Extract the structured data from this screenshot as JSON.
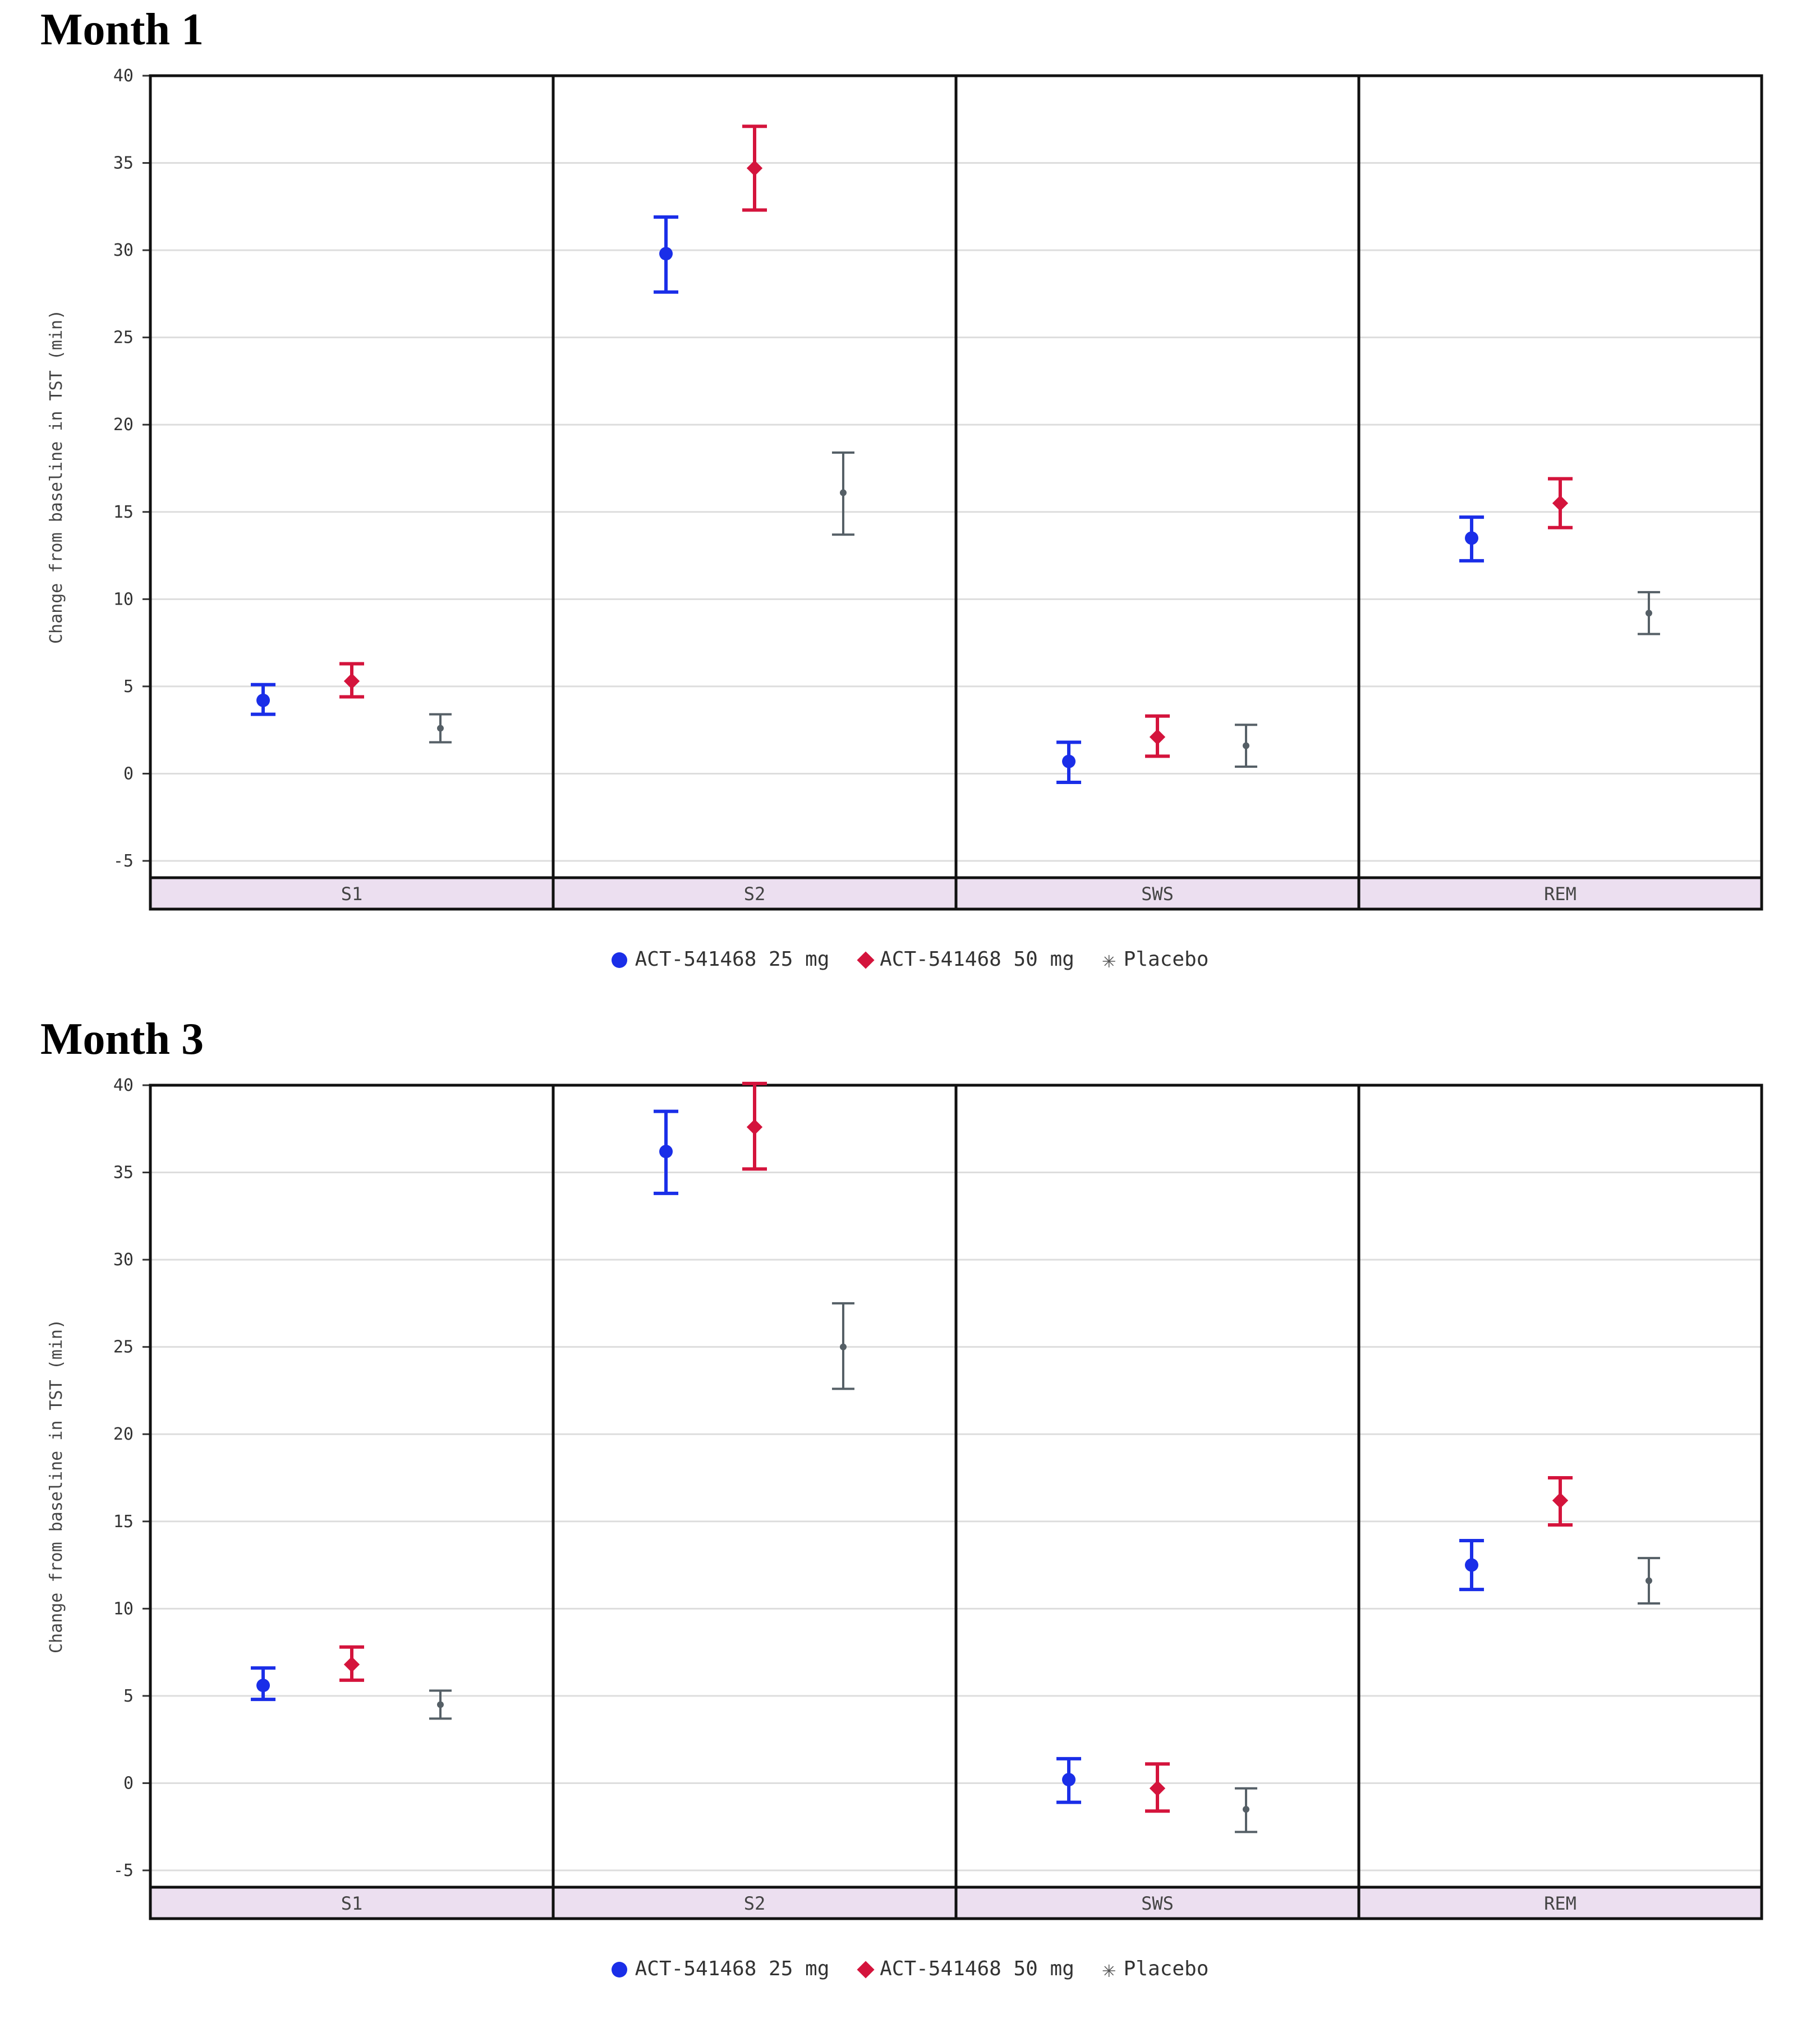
{
  "colors": {
    "drug25": "#1a2ee8",
    "drug50": "#d4143c",
    "placebo": "#555f66",
    "strip": "#ecdff0",
    "grid": "#dddddd"
  },
  "legend": {
    "items": [
      {
        "label": "ACT-541468 25 mg",
        "marker": "circle",
        "color": "#1a2ee8"
      },
      {
        "label": "ACT-541468 50 mg",
        "marker": "diamond",
        "color": "#d4143c"
      },
      {
        "label": "Placebo",
        "marker": "star",
        "color": "#555f66"
      }
    ]
  },
  "chart_data": [
    {
      "type": "scatter",
      "title": "Month 1",
      "ylabel": "Change from baseline in TST (min)",
      "ylim": [
        -5,
        40
      ],
      "yticks": [
        -5,
        0,
        5,
        10,
        15,
        20,
        25,
        30,
        35,
        40
      ],
      "grid": true,
      "legend_position": "bottom",
      "panels": [
        "S1",
        "S2",
        "SWS",
        "REM"
      ],
      "series": [
        {
          "name": "ACT-541468 25 mg",
          "color": "#1a2ee8",
          "points": [
            {
              "panel": "S1",
              "y": 4.2,
              "low": 3.4,
              "high": 5.1
            },
            {
              "panel": "S2",
              "y": 29.8,
              "low": 27.6,
              "high": 31.9
            },
            {
              "panel": "SWS",
              "y": 0.7,
              "low": -0.5,
              "high": 1.8
            },
            {
              "panel": "REM",
              "y": 13.5,
              "low": 12.2,
              "high": 14.7
            }
          ]
        },
        {
          "name": "ACT-541468 50 mg",
          "color": "#d4143c",
          "points": [
            {
              "panel": "S1",
              "y": 5.3,
              "low": 4.4,
              "high": 6.3
            },
            {
              "panel": "S2",
              "y": 34.7,
              "low": 32.3,
              "high": 37.1
            },
            {
              "panel": "SWS",
              "y": 2.1,
              "low": 1.0,
              "high": 3.3
            },
            {
              "panel": "REM",
              "y": 15.5,
              "low": 14.1,
              "high": 16.9
            }
          ]
        },
        {
          "name": "Placebo",
          "color": "#555f66",
          "points": [
            {
              "panel": "S1",
              "y": 2.6,
              "low": 1.8,
              "high": 3.4
            },
            {
              "panel": "S2",
              "y": 16.1,
              "low": 13.7,
              "high": 18.4
            },
            {
              "panel": "SWS",
              "y": 1.6,
              "low": 0.4,
              "high": 2.8
            },
            {
              "panel": "REM",
              "y": 9.2,
              "low": 8.0,
              "high": 10.4
            }
          ]
        }
      ]
    },
    {
      "type": "scatter",
      "title": "Month 3",
      "ylabel": "Change from baseline in TST (min)",
      "ylim": [
        -5,
        40
      ],
      "yticks": [
        -5,
        0,
        5,
        10,
        15,
        20,
        25,
        30,
        35,
        40
      ],
      "grid": true,
      "legend_position": "bottom",
      "panels": [
        "S1",
        "S2",
        "SWS",
        "REM"
      ],
      "series": [
        {
          "name": "ACT-541468 25 mg",
          "color": "#1a2ee8",
          "points": [
            {
              "panel": "S1",
              "y": 5.6,
              "low": 4.8,
              "high": 6.6
            },
            {
              "panel": "S2",
              "y": 36.2,
              "low": 33.8,
              "high": 38.5
            },
            {
              "panel": "SWS",
              "y": 0.2,
              "low": -1.1,
              "high": 1.4
            },
            {
              "panel": "REM",
              "y": 12.5,
              "low": 11.1,
              "high": 13.9
            }
          ]
        },
        {
          "name": "ACT-541468 50 mg",
          "color": "#d4143c",
          "points": [
            {
              "panel": "S1",
              "y": 6.8,
              "low": 5.9,
              "high": 7.8
            },
            {
              "panel": "S2",
              "y": 37.6,
              "low": 35.2,
              "high": 40.1
            },
            {
              "panel": "SWS",
              "y": -0.3,
              "low": -1.6,
              "high": 1.1
            },
            {
              "panel": "REM",
              "y": 16.2,
              "low": 14.8,
              "high": 17.5
            }
          ]
        },
        {
          "name": "Placebo",
          "color": "#555f66",
          "points": [
            {
              "panel": "S1",
              "y": 4.5,
              "low": 3.7,
              "high": 5.3
            },
            {
              "panel": "S2",
              "y": 25.0,
              "low": 22.6,
              "high": 27.5
            },
            {
              "panel": "SWS",
              "y": -1.5,
              "low": -2.8,
              "high": -0.3
            },
            {
              "panel": "REM",
              "y": 11.6,
              "low": 10.3,
              "high": 12.9
            }
          ]
        }
      ]
    }
  ]
}
